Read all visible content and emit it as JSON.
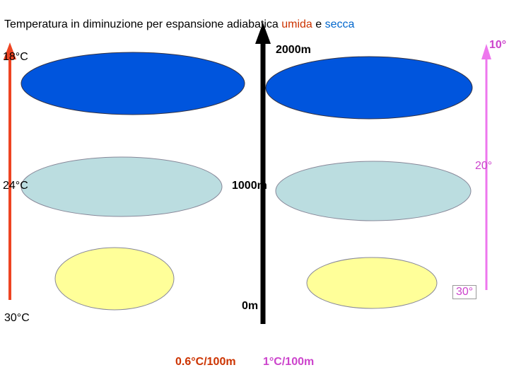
{
  "title": {
    "prefix": "Temperatura in diminuzione per espansione adiabatica ",
    "humid": "umida",
    "conj": " e ",
    "dry": "secca"
  },
  "left_temps": {
    "top": "18°C",
    "middle": "24°C",
    "bottom": "30°C"
  },
  "altitudes": {
    "high": "2000m",
    "mid": "1000m",
    "low": "0m"
  },
  "right_temps": {
    "top": "10°",
    "middle": "20°",
    "bottom": "30°"
  },
  "rates": {
    "humid": "0.6°C/100m",
    "dry": "1°C/100m"
  },
  "colors": {
    "humid_arrow": "#ee4422",
    "dry_arrow": "#ee77ee",
    "center_arrow": "#000000",
    "cloud_dark": "#0055dd",
    "cloud_light": "#bbdde0",
    "cloud_warm": "#ffff99"
  }
}
